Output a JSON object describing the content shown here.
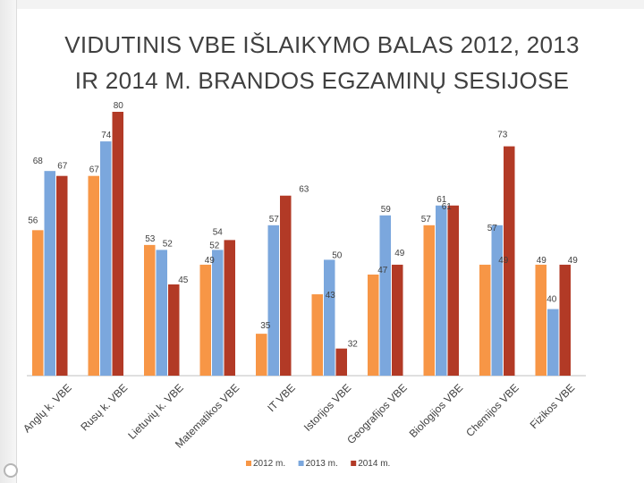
{
  "title": {
    "line1": "VIDUTINIS VBE IŠLAIKYMO BALAS 2012, 2013",
    "line2": "IR 2014 M. BRANDOS EGZAMINŲ SESIJOSE"
  },
  "chart_data": {
    "type": "bar",
    "title": "VIDUTINIS VBE IŠLAIKYMO BALAS 2012, 2013 IR 2014 M. BRANDOS EGZAMINŲ SESIJOSE",
    "categories": [
      "Anglų k. VBE",
      "Rusų k. VBE",
      "Lietuvių k. VBE",
      "Matematikos VBE",
      "IT VBE",
      "Istorijos VBE",
      "Geografijos VBE",
      "Biologijos VBE",
      "Chemijos VBE",
      "Fizikos VBE"
    ],
    "series": [
      {
        "name": "2012 m.",
        "color": "#f79646",
        "values": [
          56,
          67,
          53,
          49,
          35,
          43,
          47,
          57,
          49,
          49
        ]
      },
      {
        "name": "2013 m.",
        "color": "#7ba7dd",
        "values": [
          68,
          74,
          52,
          52,
          57,
          50,
          59,
          61,
          57,
          40
        ]
      },
      {
        "name": "2014 m.",
        "color": "#b23a26",
        "values": [
          67,
          80,
          45,
          54,
          63,
          32,
          49,
          61,
          73,
          49
        ]
      }
    ],
    "legend_position": "bottom",
    "grid": false,
    "ylim": [
      0,
      80
    ]
  }
}
